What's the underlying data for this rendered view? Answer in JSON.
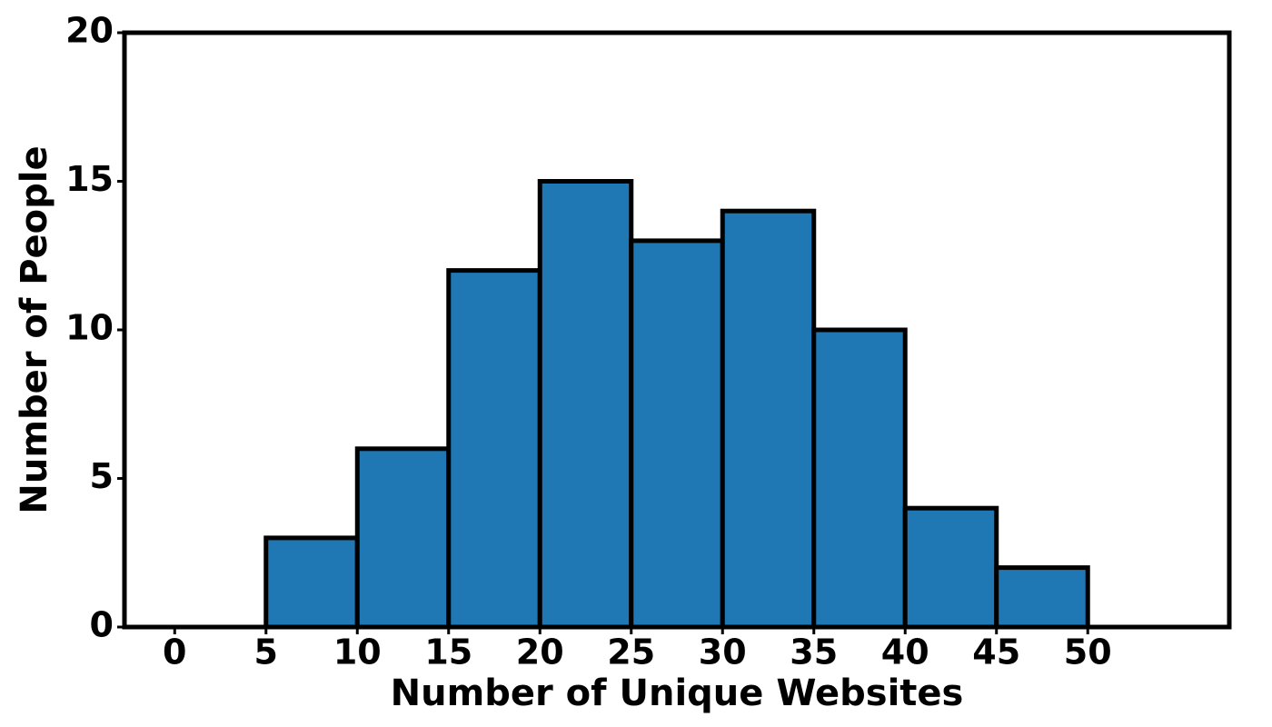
{
  "chart_data": {
    "type": "histogram",
    "xlabel": "Number of Unique Websites",
    "ylabel": "Number of People",
    "bins": [
      0,
      5,
      10,
      15,
      20,
      25,
      30,
      35,
      40,
      45,
      50,
      55
    ],
    "values": [
      0,
      3,
      6,
      12,
      15,
      13,
      14,
      10,
      4,
      2,
      0
    ],
    "color": "#1f77b4",
    "edgecolor": "#000000",
    "xlim": [
      -2.75,
      57.75
    ],
    "xticks": [
      0,
      5,
      10,
      15,
      20,
      25,
      30,
      35,
      40,
      45,
      50
    ],
    "ylim": [
      0,
      20
    ],
    "yticks": [
      0,
      5,
      10,
      15,
      20
    ],
    "grid": false
  }
}
